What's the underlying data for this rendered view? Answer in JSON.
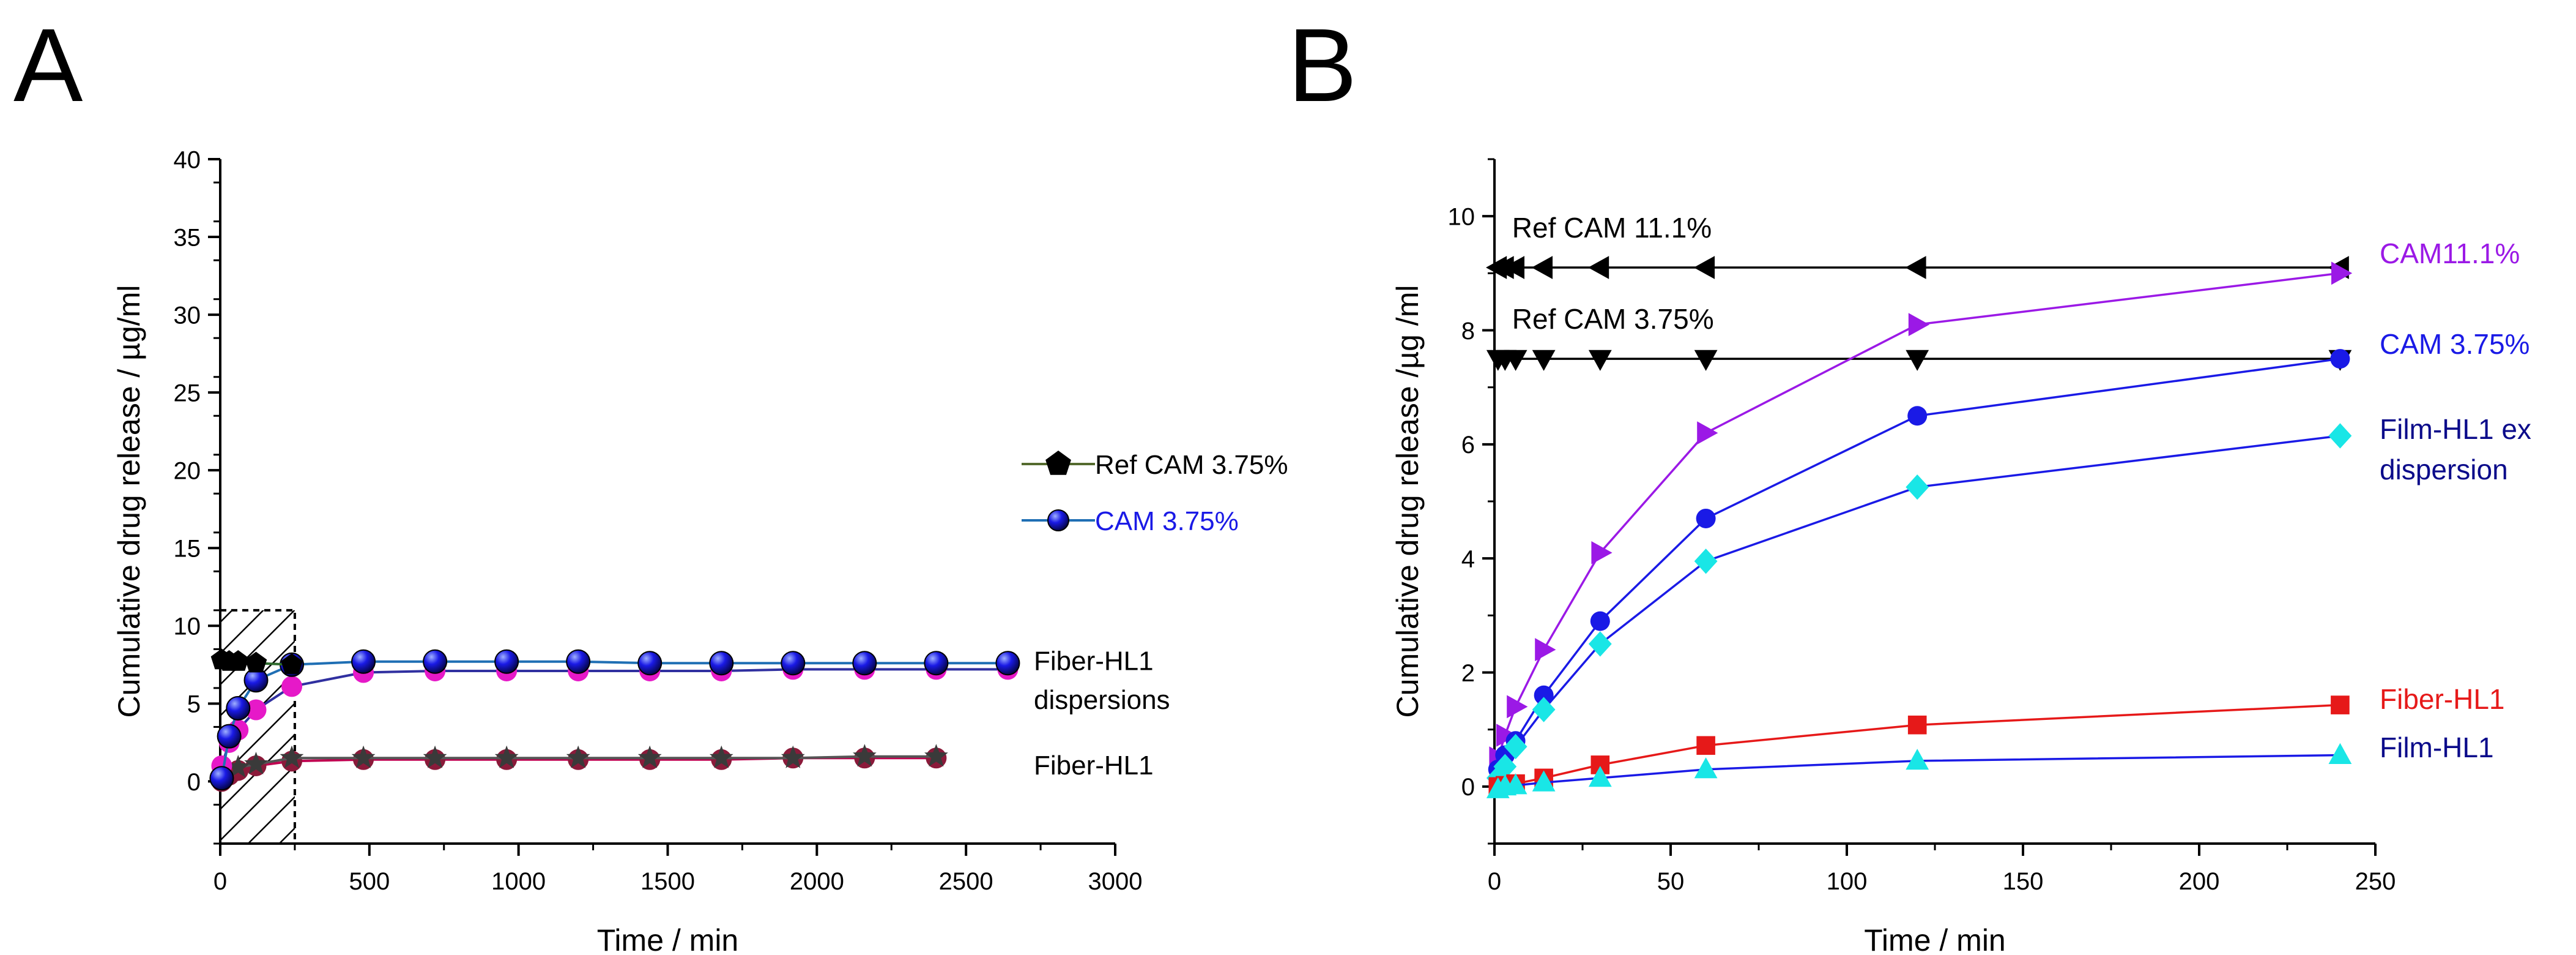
{
  "panels": [
    {
      "letter": "A"
    },
    {
      "letter": "B"
    }
  ],
  "chart_data": [
    {
      "type": "line",
      "panel": "A",
      "xlabel": "Time / min",
      "ylabel": "Cumulative drug release / µg/ml",
      "xlim": [
        0,
        3000
      ],
      "ylim": [
        -4,
        40
      ],
      "xticks": [
        0,
        500,
        1000,
        1500,
        2000,
        2500,
        3000
      ],
      "yticks": [
        0,
        5,
        10,
        15,
        20,
        25,
        30,
        35,
        40
      ],
      "shaded_region": {
        "x": [
          0,
          250
        ],
        "y": [
          -4,
          11
        ]
      },
      "legend": [
        {
          "label": "Ref CAM 3.75%",
          "color": "#000000",
          "line_color": "#556b2f",
          "marker": "pentagon"
        },
        {
          "label": "CAM 3.75%",
          "color": "#1a1ae6",
          "line_color": "#1f6fb4",
          "marker": "sphere"
        }
      ],
      "annotations": [
        {
          "text": "Fiber-HL1",
          "x": 2720,
          "y": 7.7
        },
        {
          "text": "dispersions",
          "x": 2720,
          "y": 5.2
        },
        {
          "text": "Fiber-HL1",
          "x": 2720,
          "y": 1.0
        }
      ],
      "series": [
        {
          "name": "Ref CAM 3.75%",
          "color": "#000000",
          "line_color": "#2e6b2e",
          "marker": "pentagon",
          "x": [
            5,
            30,
            60,
            120,
            240
          ],
          "y": [
            7.8,
            7.7,
            7.7,
            7.6,
            7.5
          ]
        },
        {
          "name": "CAM 3.75%",
          "color": "#1a1ae6",
          "line_color": "#1f6fb4",
          "marker": "sphere",
          "x": [
            5,
            30,
            60,
            120,
            240,
            480,
            720,
            960,
            1200,
            1440,
            1680,
            1920,
            2160,
            2400,
            2640
          ],
          "y": [
            0.2,
            2.9,
            4.7,
            6.5,
            7.5,
            7.7,
            7.7,
            7.7,
            7.7,
            7.6,
            7.6,
            7.6,
            7.6,
            7.6,
            7.6
          ]
        },
        {
          "name": "Fiber-HL1 dispersion",
          "color": "#e619c8",
          "line_color": "#3030a0",
          "marker": "circle",
          "x": [
            5,
            30,
            60,
            120,
            240,
            480,
            720,
            960,
            1200,
            1440,
            1680,
            1920,
            2160,
            2400,
            2640
          ],
          "y": [
            1.0,
            2.5,
            3.3,
            4.6,
            6.1,
            7.0,
            7.1,
            7.1,
            7.1,
            7.1,
            7.1,
            7.2,
            7.2,
            7.2,
            7.2
          ]
        },
        {
          "name": "Fiber-HL1",
          "color": "#8b1a3a",
          "line_color": "#c00050",
          "marker": "circle",
          "x": [
            5,
            30,
            60,
            120,
            240,
            480,
            720,
            960,
            1200,
            1440,
            1680,
            1920,
            2160,
            2400
          ],
          "y": [
            0.0,
            0.4,
            0.7,
            1.0,
            1.3,
            1.4,
            1.4,
            1.4,
            1.4,
            1.4,
            1.4,
            1.5,
            1.5,
            1.5
          ]
        },
        {
          "name": "Fiber-HL1 (2)",
          "color": "#3a3a3a",
          "line_color": "#555555",
          "marker": "star",
          "x": [
            60,
            120,
            240,
            480,
            720,
            960,
            1200,
            1440,
            1680,
            1920,
            2160,
            2400
          ],
          "y": [
            0.9,
            1.1,
            1.5,
            1.5,
            1.5,
            1.5,
            1.5,
            1.5,
            1.5,
            1.5,
            1.6,
            1.6
          ]
        }
      ]
    },
    {
      "type": "line",
      "panel": "B",
      "xlabel": "Time / min",
      "ylabel": "Cumulative drug release /µg /ml",
      "xlim": [
        0,
        250
      ],
      "ylim": [
        -1,
        11
      ],
      "xticks": [
        0,
        50,
        100,
        150,
        200,
        250
      ],
      "yticks": [
        0,
        2,
        4,
        6,
        8,
        10
      ],
      "annotations": [
        {
          "text": "Ref CAM 11.1%",
          "x": 5,
          "y": 9.8,
          "color": "#000000"
        },
        {
          "text": "Ref CAM 3.75%",
          "x": 5,
          "y": 8.2,
          "color": "#000000"
        }
      ],
      "series": [
        {
          "name": "Ref CAM 11.1%",
          "label": "",
          "color": "#000000",
          "marker": "triangle-left",
          "x": [
            1,
            3,
            6,
            14,
            30,
            60,
            120,
            240
          ],
          "y": [
            9.1,
            9.1,
            9.1,
            9.1,
            9.1,
            9.1,
            9.1,
            9.1
          ]
        },
        {
          "name": "Ref CAM 3.75%",
          "label": "",
          "color": "#000000",
          "marker": "triangle-down",
          "x": [
            1,
            3,
            6,
            14,
            30,
            60,
            120,
            240
          ],
          "y": [
            7.5,
            7.5,
            7.5,
            7.5,
            7.5,
            7.5,
            7.5,
            7.5
          ]
        },
        {
          "name": "CAM11.1%",
          "label": "CAM11.1%",
          "color": "#9b19e6",
          "marker": "triangle-right",
          "x": [
            1,
            3,
            6,
            14,
            30,
            60,
            120,
            240
          ],
          "y": [
            0.5,
            0.9,
            1.4,
            2.4,
            4.1,
            6.2,
            8.1,
            9.0
          ]
        },
        {
          "name": "CAM 3.75%",
          "label": "CAM 3.75%",
          "color": "#1a1ae6",
          "marker": "circle",
          "x": [
            1,
            3,
            6,
            14,
            30,
            60,
            120,
            240
          ],
          "y": [
            0.3,
            0.55,
            0.8,
            1.6,
            2.9,
            4.7,
            6.5,
            7.5
          ]
        },
        {
          "name": "Film-HL1 ex dispersion",
          "label": "Film-HL1 ex|dispersion",
          "color": "#19e6e6",
          "line_color": "#1a1ae6",
          "marker": "diamond",
          "x": [
            1,
            3,
            6,
            14,
            30,
            60,
            120,
            240
          ],
          "y": [
            0.15,
            0.35,
            0.7,
            1.35,
            2.5,
            3.95,
            5.25,
            6.15
          ]
        },
        {
          "name": "Fiber-HL1",
          "label": "Fiber-HL1",
          "color": "#e61919",
          "marker": "square",
          "x": [
            1,
            3,
            6,
            14,
            30,
            60,
            120,
            240
          ],
          "y": [
            0.0,
            0.02,
            0.05,
            0.15,
            0.38,
            0.72,
            1.08,
            1.43
          ]
        },
        {
          "name": "Film-HL1",
          "label": "Film-HL1",
          "color": "#19e6e6",
          "line_color": "#1a1ae6",
          "marker": "triangle-up",
          "x": [
            1,
            3,
            6,
            14,
            30,
            60,
            120,
            240
          ],
          "y": [
            -0.05,
            0.0,
            0.02,
            0.07,
            0.15,
            0.3,
            0.45,
            0.55
          ]
        }
      ]
    }
  ]
}
